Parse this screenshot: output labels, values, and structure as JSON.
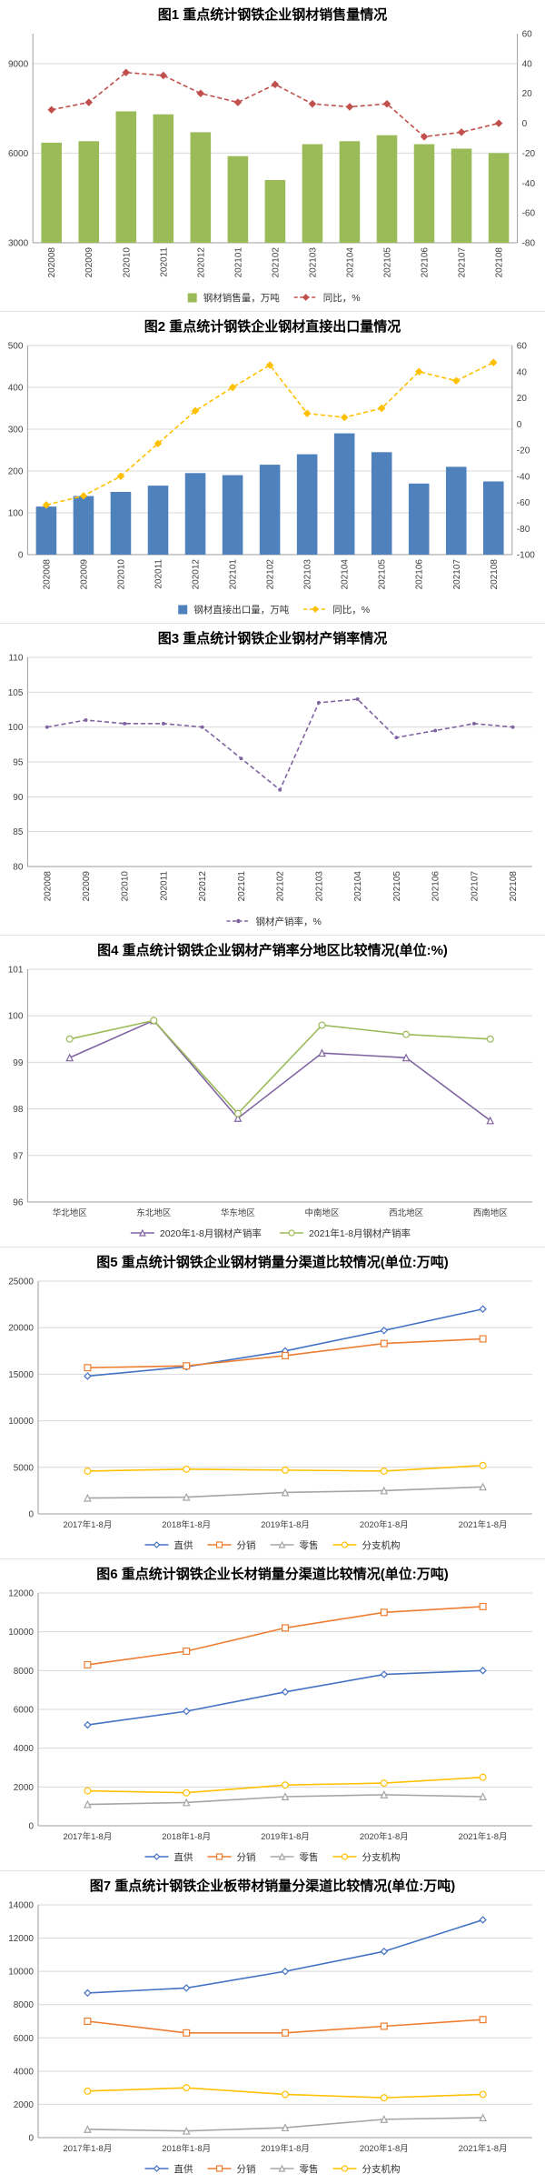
{
  "chart_data": [
    {
      "type": "combo",
      "title": "图1 重点统计钢铁企业钢材销售量情况",
      "categories": [
        "202008",
        "202009",
        "202010",
        "202011",
        "202012",
        "202101",
        "202102",
        "202103",
        "202104",
        "202105",
        "202106",
        "202107",
        "202108"
      ],
      "bars": [
        {
          "name": "钢材销售量，万吨",
          "color": "#9BBB59",
          "values": [
            6350,
            6400,
            7400,
            7300,
            6700,
            5900,
            5100,
            6300,
            6400,
            6600,
            6300,
            6150,
            6000
          ]
        }
      ],
      "lines": [
        {
          "name": "同比，%",
          "color": "#C0504D",
          "axis": "right",
          "dash": true,
          "marker": "diamond",
          "open": false,
          "values": [
            9,
            14,
            34,
            32,
            20,
            14,
            26,
            13,
            11,
            13,
            -9,
            -6,
            0
          ]
        }
      ],
      "y_left": {
        "min": 3000,
        "max": 10000,
        "ticks": [
          3000,
          6000,
          9000
        ]
      },
      "y_right": {
        "min": -80,
        "max": 60,
        "ticks": [
          -80,
          -60,
          -40,
          -20,
          0,
          20,
          40,
          60
        ]
      },
      "x_rotate": true,
      "grid": true,
      "legend_position": "bottom"
    },
    {
      "type": "combo",
      "title": "图2 重点统计钢铁企业钢材直接出口量情况",
      "categories": [
        "202008",
        "202009",
        "202010",
        "202011",
        "202012",
        "202101",
        "202102",
        "202103",
        "202104",
        "202105",
        "202106",
        "202107",
        "202108"
      ],
      "bars": [
        {
          "name": "钢材直接出口量，万吨",
          "color": "#4F81BD",
          "values": [
            115,
            140,
            150,
            165,
            195,
            190,
            215,
            240,
            290,
            245,
            170,
            210,
            175
          ]
        }
      ],
      "lines": [
        {
          "name": "同比，%",
          "color": "#FFC000",
          "axis": "right",
          "dash": true,
          "marker": "diamond",
          "open": false,
          "values": [
            -62,
            -55,
            -40,
            -15,
            10,
            28,
            45,
            8,
            5,
            12,
            40,
            33,
            47
          ]
        }
      ],
      "y_left": {
        "min": 0,
        "max": 500,
        "ticks": [
          0,
          100,
          200,
          300,
          400,
          500
        ]
      },
      "y_right": {
        "min": -100,
        "max": 60,
        "ticks": [
          -100,
          -80,
          -60,
          -40,
          -20,
          0,
          20,
          40,
          60
        ]
      },
      "x_rotate": true,
      "grid": true,
      "legend_position": "bottom"
    },
    {
      "type": "line",
      "title": "图3 重点统计钢铁企业钢材产销率情况",
      "categories": [
        "202008",
        "202009",
        "202010",
        "202011",
        "202012",
        "202101",
        "202102",
        "202103",
        "202104",
        "202105",
        "202106",
        "202107",
        "202108"
      ],
      "lines": [
        {
          "name": "钢材产销率，%",
          "color": "#8064A2",
          "dash": true,
          "marker": "dot",
          "open": false,
          "values": [
            100,
            101,
            100.5,
            100.5,
            100,
            95.5,
            91,
            103.5,
            104,
            98.5,
            99.5,
            100.5,
            100
          ]
        }
      ],
      "y_left": {
        "min": 80,
        "max": 110,
        "ticks": [
          80,
          85,
          90,
          95,
          100,
          105,
          110
        ]
      },
      "x_rotate": true,
      "grid": true,
      "legend_position": "bottom"
    },
    {
      "type": "line",
      "title": "图4 重点统计钢铁企业钢材产销率分地区比较情况(单位:%)",
      "categories": [
        "华北地区",
        "东北地区",
        "华东地区",
        "中南地区",
        "西北地区",
        "西南地区"
      ],
      "lines": [
        {
          "name": "2020年1-8月钢材产销率",
          "color": "#8064A2",
          "marker": "triangle",
          "open": true,
          "values": [
            99.1,
            99.9,
            97.8,
            99.2,
            99.1,
            97.75
          ]
        },
        {
          "name": "2021年1-8月钢材产销率",
          "color": "#9BBB59",
          "marker": "circle",
          "open": true,
          "values": [
            99.5,
            99.9,
            97.9,
            99.8,
            99.6,
            99.5
          ]
        }
      ],
      "y_left": {
        "min": 96,
        "max": 101,
        "ticks": [
          96,
          97,
          98,
          99,
          100,
          101
        ]
      },
      "x_rotate": false,
      "grid": true,
      "legend_position": "bottom"
    },
    {
      "type": "line",
      "title": "图5 重点统计钢铁企业钢材销量分渠道比较情况(单位:万吨)",
      "categories": [
        "2017年1-8月",
        "2018年1-8月",
        "2019年1-8月",
        "2020年1-8月",
        "2021年1-8月"
      ],
      "lines": [
        {
          "name": "直供",
          "color": "#4472C4",
          "marker": "diamond",
          "open": true,
          "values": [
            14800,
            15800,
            17500,
            19700,
            22000
          ]
        },
        {
          "name": "分销",
          "color": "#ED7D31",
          "marker": "square",
          "open": true,
          "values": [
            15700,
            15900,
            17000,
            18300,
            18800
          ]
        },
        {
          "name": "零售",
          "color": "#A5A5A5",
          "marker": "triangle",
          "open": true,
          "values": [
            1700,
            1800,
            2300,
            2500,
            2900
          ]
        },
        {
          "name": "分支机构",
          "color": "#FFC000",
          "marker": "circle",
          "open": true,
          "values": [
            4600,
            4800,
            4700,
            4600,
            5200
          ]
        }
      ],
      "y_left": {
        "min": 0,
        "max": 25000,
        "ticks": [
          0,
          5000,
          10000,
          15000,
          20000,
          25000
        ]
      },
      "x_rotate": false,
      "grid": true,
      "legend_position": "bottom"
    },
    {
      "type": "line",
      "title": "图6 重点统计钢铁企业长材销量分渠道比较情况(单位:万吨)",
      "categories": [
        "2017年1-8月",
        "2018年1-8月",
        "2019年1-8月",
        "2020年1-8月",
        "2021年1-8月"
      ],
      "lines": [
        {
          "name": "直供",
          "color": "#4472C4",
          "marker": "diamond",
          "open": true,
          "values": [
            5200,
            5900,
            6900,
            7800,
            8000
          ]
        },
        {
          "name": "分销",
          "color": "#ED7D31",
          "marker": "square",
          "open": true,
          "values": [
            8300,
            9000,
            10200,
            11000,
            11300
          ]
        },
        {
          "name": "零售",
          "color": "#A5A5A5",
          "marker": "triangle",
          "open": true,
          "values": [
            1100,
            1200,
            1500,
            1600,
            1500
          ]
        },
        {
          "name": "分支机构",
          "color": "#FFC000",
          "marker": "circle",
          "open": true,
          "values": [
            1800,
            1700,
            2100,
            2200,
            2500
          ]
        }
      ],
      "y_left": {
        "min": 0,
        "max": 12000,
        "ticks": [
          0,
          2000,
          4000,
          6000,
          8000,
          10000,
          12000
        ]
      },
      "x_rotate": false,
      "grid": true,
      "legend_position": "bottom"
    },
    {
      "type": "line",
      "title": "图7 重点统计钢铁企业板带材销量分渠道比较情况(单位:万吨)",
      "categories": [
        "2017年1-8月",
        "2018年1-8月",
        "2019年1-8月",
        "2020年1-8月",
        "2021年1-8月"
      ],
      "lines": [
        {
          "name": "直供",
          "color": "#4472C4",
          "marker": "diamond",
          "open": true,
          "values": [
            8700,
            9000,
            10000,
            11200,
            13100
          ]
        },
        {
          "name": "分销",
          "color": "#ED7D31",
          "marker": "square",
          "open": true,
          "values": [
            7000,
            6300,
            6300,
            6700,
            7100
          ]
        },
        {
          "name": "零售",
          "color": "#A5A5A5",
          "marker": "triangle",
          "open": true,
          "values": [
            500,
            400,
            600,
            1100,
            1200
          ]
        },
        {
          "name": "分支机构",
          "color": "#FFC000",
          "marker": "circle",
          "open": true,
          "values": [
            2800,
            3000,
            2600,
            2400,
            2600
          ]
        }
      ],
      "y_left": {
        "min": 0,
        "max": 14000,
        "ticks": [
          0,
          2000,
          4000,
          6000,
          8000,
          10000,
          12000,
          14000
        ]
      },
      "x_rotate": false,
      "grid": true,
      "legend_position": "bottom"
    }
  ],
  "style": {
    "grid_color": "#D9D9D9",
    "axis_color": "#9E9E9E",
    "tick_label_color": "#404040"
  }
}
